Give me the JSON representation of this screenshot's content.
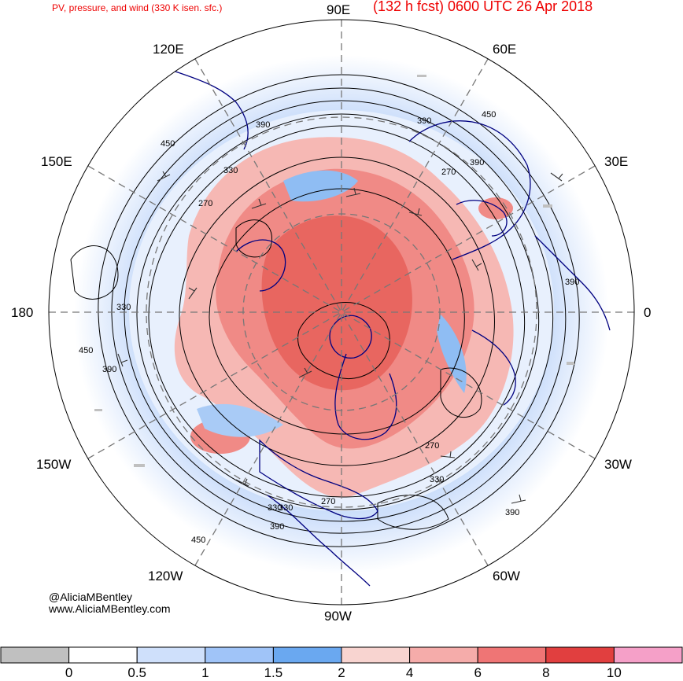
{
  "header": {
    "product_title": "PV, pressure, and wind (330 K isen. sfc.)",
    "forecast_title": "(132 h fcst) 0600 UTC 26 Apr 2018"
  },
  "longitude_labels": [
    "90E",
    "60E",
    "120E",
    "150E",
    "30E",
    "180",
    "0",
    "150W",
    "30W",
    "120W",
    "60W",
    "90W"
  ],
  "contour_labels": [
    "390",
    "450",
    "390",
    "450",
    "330",
    "270",
    "390",
    "270",
    "330",
    "450",
    "390",
    "390",
    "330",
    "270",
    "330",
    "390",
    "270",
    "330",
    "390",
    "450"
  ],
  "credits": {
    "handle": "@AliciaMBentley",
    "website": "www.AliciaMBentley.com"
  },
  "colorbar": {
    "units_ticks": [
      "0",
      "0.5",
      "1",
      "1.5",
      "2",
      "4",
      "6",
      "8",
      "10"
    ],
    "colors": [
      "#c0c0c0",
      "#ffffff",
      "#cfe0fb",
      "#a0c4f8",
      "#6aa8f0",
      "#f8d4d0",
      "#f5acaa",
      "#ef7575",
      "#e13f3f",
      "#f5a0c8"
    ]
  },
  "map_colors": {
    "coastline": "#000080",
    "grid": "#666666",
    "low_pv_blue": "#8fbdf3",
    "high_pv_red": "#f08a86"
  }
}
